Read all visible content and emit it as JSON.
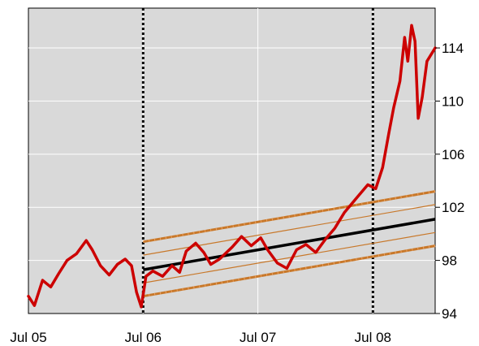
{
  "chart_data": {
    "type": "line",
    "title": "",
    "xlabel": "",
    "ylabel": "",
    "x_range": [
      "2005-07-01",
      "2009-01-15"
    ],
    "ylim": [
      94,
      117
    ],
    "x_ticks": [
      {
        "date": "2005-07-01",
        "label": "Jul 05"
      },
      {
        "date": "2006-07-01",
        "label": "Jul 06"
      },
      {
        "date": "2007-07-01",
        "label": "Jul 07"
      },
      {
        "date": "2008-07-01",
        "label": "Jul 08"
      }
    ],
    "y_ticks": [
      {
        "value": 94,
        "label": "94"
      },
      {
        "value": 98,
        "label": "98"
      },
      {
        "value": 102,
        "label": "102"
      },
      {
        "value": 106,
        "label": "106"
      },
      {
        "value": 110,
        "label": "110"
      },
      {
        "value": 114,
        "label": "114"
      }
    ],
    "y_axis_side": "right",
    "grid": true,
    "background": "#d9d9d9",
    "vertical_markers": [
      "2006-07-01",
      "2008-07-01"
    ],
    "series": [
      {
        "role": "actual",
        "color": "#cc0000",
        "points": [
          [
            "2005-07-01",
            95.3
          ],
          [
            "2005-07-20",
            94.6
          ],
          [
            "2005-08-15",
            96.5
          ],
          [
            "2005-09-10",
            96.0
          ],
          [
            "2005-10-05",
            97.0
          ],
          [
            "2005-11-01",
            98.0
          ],
          [
            "2005-12-01",
            98.5
          ],
          [
            "2006-01-01",
            99.5
          ],
          [
            "2006-01-20",
            98.8
          ],
          [
            "2006-02-15",
            97.6
          ],
          [
            "2006-03-15",
            96.9
          ],
          [
            "2006-04-10",
            97.7
          ],
          [
            "2006-05-05",
            98.1
          ],
          [
            "2006-05-25",
            97.6
          ],
          [
            "2006-06-10",
            95.6
          ],
          [
            "2006-06-25",
            94.5
          ],
          [
            "2006-07-10",
            96.8
          ],
          [
            "2006-08-01",
            97.2
          ],
          [
            "2006-09-01",
            96.8
          ],
          [
            "2006-10-01",
            97.6
          ],
          [
            "2006-10-25",
            97.1
          ],
          [
            "2006-11-15",
            98.7
          ],
          [
            "2006-12-15",
            99.3
          ],
          [
            "2007-01-10",
            98.6
          ],
          [
            "2007-02-01",
            97.7
          ],
          [
            "2007-03-01",
            98.1
          ],
          [
            "2007-04-10",
            99.0
          ],
          [
            "2007-05-10",
            99.8
          ],
          [
            "2007-06-10",
            99.1
          ],
          [
            "2007-07-10",
            99.7
          ],
          [
            "2007-08-01",
            98.8
          ],
          [
            "2007-09-01",
            97.8
          ],
          [
            "2007-10-01",
            97.4
          ],
          [
            "2007-11-01",
            98.8
          ],
          [
            "2007-12-01",
            99.2
          ],
          [
            "2008-01-01",
            98.6
          ],
          [
            "2008-02-01",
            99.6
          ],
          [
            "2008-03-01",
            100.4
          ],
          [
            "2008-04-01",
            101.6
          ],
          [
            "2008-05-10",
            102.7
          ],
          [
            "2008-06-15",
            103.7
          ],
          [
            "2008-07-10",
            103.4
          ],
          [
            "2008-08-01",
            105.0
          ],
          [
            "2008-08-20",
            107.5
          ],
          [
            "2008-09-05",
            109.5
          ],
          [
            "2008-09-25",
            111.5
          ],
          [
            "2008-10-10",
            114.8
          ],
          [
            "2008-10-20",
            113.0
          ],
          [
            "2008-11-01",
            115.7
          ],
          [
            "2008-11-12",
            114.5
          ],
          [
            "2008-11-22",
            108.7
          ],
          [
            "2008-12-05",
            110.3
          ],
          [
            "2008-12-20",
            113.0
          ],
          [
            "2009-01-15",
            114.0
          ]
        ]
      },
      {
        "role": "trend",
        "color": "#000000",
        "points": [
          [
            "2006-07-01",
            97.3
          ],
          [
            "2009-01-15",
            101.1
          ]
        ]
      },
      {
        "role": "inner-band-upper",
        "color": "#c8782a",
        "points": [
          [
            "2006-07-01",
            98.4
          ],
          [
            "2009-01-15",
            102.2
          ]
        ]
      },
      {
        "role": "inner-band-lower",
        "color": "#c8782a",
        "points": [
          [
            "2006-07-01",
            96.3
          ],
          [
            "2009-01-15",
            100.1
          ]
        ]
      },
      {
        "role": "outer-band-upper",
        "color": "#c8782a",
        "points": [
          [
            "2006-07-01",
            99.4
          ],
          [
            "2009-01-15",
            103.2
          ]
        ]
      },
      {
        "role": "outer-band-lower",
        "color": "#c8782a",
        "points": [
          [
            "2006-07-01",
            95.3
          ],
          [
            "2009-01-15",
            99.1
          ]
        ]
      }
    ]
  }
}
